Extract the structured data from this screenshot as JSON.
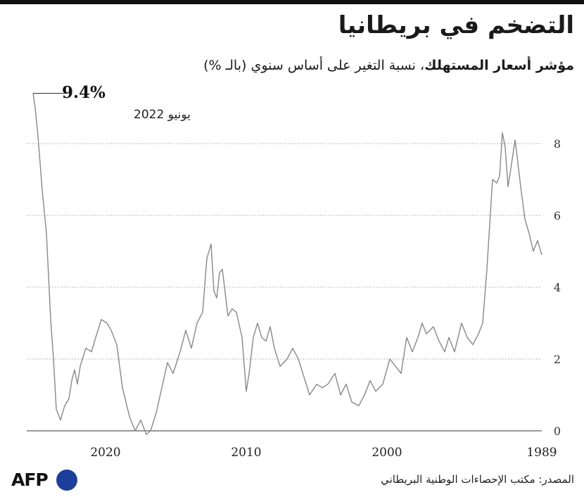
{
  "title": "التضخم في بريطانيا",
  "subtitle": {
    "bold": "مؤشر أسعار المستهلك",
    "rest": "، نسبة التغير على أساس سنوي (بالـ %)"
  },
  "annotation": {
    "value": "9.4%",
    "date": "يونيو 2022"
  },
  "source": "المصدر: مكتب الإحصاءات الوطنية البريطاني",
  "logo": {
    "text": "AFP",
    "color": "#1c3f9c"
  },
  "chart_data": {
    "type": "line",
    "title": "التضخم في بريطانيا",
    "ylabel": "مؤشر أسعار المستهلك، نسبة التغير على أساس سنوي (بالـ %)",
    "x_reversed": true,
    "xlim": [
      1989.0,
      2022.5
    ],
    "ylim": [
      0,
      9.4
    ],
    "x_ticks": [
      1989,
      2000,
      2010,
      2020
    ],
    "y_ticks": [
      0,
      2,
      4,
      6,
      8
    ],
    "grid": true,
    "line_color": "#888888",
    "series": [
      {
        "points": [
          [
            1989.0,
            4.9
          ],
          [
            1989.3,
            5.3
          ],
          [
            1989.6,
            5.0
          ],
          [
            1989.9,
            5.5
          ],
          [
            1990.2,
            5.9
          ],
          [
            1990.5,
            6.8
          ],
          [
            1990.8,
            7.8
          ],
          [
            1990.9,
            8.1
          ],
          [
            1991.2,
            7.3
          ],
          [
            1991.4,
            6.8
          ],
          [
            1991.6,
            7.9
          ],
          [
            1991.8,
            8.3
          ],
          [
            1992.0,
            7.1
          ],
          [
            1992.2,
            6.9
          ],
          [
            1992.5,
            7.0
          ],
          [
            1992.9,
            4.5
          ],
          [
            1993.2,
            3.0
          ],
          [
            1993.5,
            2.7
          ],
          [
            1993.9,
            2.4
          ],
          [
            1994.3,
            2.6
          ],
          [
            1994.7,
            3.0
          ],
          [
            1995.2,
            2.2
          ],
          [
            1995.6,
            2.6
          ],
          [
            1995.9,
            2.2
          ],
          [
            1996.3,
            2.5
          ],
          [
            1996.7,
            2.9
          ],
          [
            1997.2,
            2.7
          ],
          [
            1997.5,
            3.0
          ],
          [
            1997.8,
            2.6
          ],
          [
            1998.2,
            2.2
          ],
          [
            1998.6,
            2.6
          ],
          [
            1999.0,
            1.6
          ],
          [
            1999.4,
            1.8
          ],
          [
            1999.8,
            2.0
          ],
          [
            2000.3,
            1.3
          ],
          [
            2000.8,
            1.1
          ],
          [
            2001.2,
            1.4
          ],
          [
            2001.6,
            1.0
          ],
          [
            2002.0,
            0.7
          ],
          [
            2002.5,
            0.8
          ],
          [
            2002.9,
            1.3
          ],
          [
            2003.3,
            1.0
          ],
          [
            2003.7,
            1.6
          ],
          [
            2004.2,
            1.3
          ],
          [
            2004.6,
            1.2
          ],
          [
            2005.0,
            1.3
          ],
          [
            2005.5,
            1.0
          ],
          [
            2005.9,
            1.5
          ],
          [
            2006.3,
            2.0
          ],
          [
            2006.7,
            2.3
          ],
          [
            2007.1,
            2.0
          ],
          [
            2007.6,
            1.8
          ],
          [
            2008.0,
            2.3
          ],
          [
            2008.3,
            2.9
          ],
          [
            2008.6,
            2.5
          ],
          [
            2008.9,
            2.6
          ],
          [
            2009.2,
            3.0
          ],
          [
            2009.5,
            2.6
          ],
          [
            2009.8,
            1.6
          ],
          [
            2010.0,
            1.1
          ],
          [
            2010.3,
            2.6
          ],
          [
            2010.7,
            3.3
          ],
          [
            2011.0,
            3.4
          ],
          [
            2011.3,
            3.2
          ],
          [
            2011.7,
            4.5
          ],
          [
            2011.9,
            4.4
          ],
          [
            2012.1,
            3.7
          ],
          [
            2012.3,
            3.9
          ],
          [
            2012.5,
            5.2
          ],
          [
            2012.8,
            4.8
          ],
          [
            2013.1,
            3.3
          ],
          [
            2013.5,
            3.0
          ],
          [
            2013.9,
            2.3
          ],
          [
            2014.3,
            2.8
          ],
          [
            2014.7,
            2.2
          ],
          [
            2015.2,
            1.6
          ],
          [
            2015.6,
            1.9
          ],
          [
            2016.0,
            1.2
          ],
          [
            2016.4,
            0.5
          ],
          [
            2016.8,
            0.0
          ],
          [
            2017.1,
            -0.1
          ],
          [
            2017.5,
            0.3
          ],
          [
            2017.9,
            0.0
          ],
          [
            2018.3,
            0.4
          ],
          [
            2018.8,
            1.2
          ],
          [
            2019.2,
            2.4
          ],
          [
            2019.6,
            2.8
          ],
          [
            2019.9,
            3.0
          ],
          [
            2020.3,
            3.1
          ],
          [
            2020.7,
            2.6
          ],
          [
            2021.0,
            2.2
          ],
          [
            2021.4,
            2.3
          ],
          [
            2021.8,
            1.8
          ],
          [
            2022.0,
            1.3
          ],
          [
            2022.2,
            1.7
          ],
          [
            2022.4,
            1.4
          ],
          [
            2022.6,
            0.9
          ],
          [
            2022.9,
            0.7
          ],
          [
            2023.2,
            0.3
          ],
          [
            2023.5,
            0.6
          ],
          [
            2023.7,
            2.0
          ],
          [
            2023.9,
            3.1
          ],
          [
            2024.2,
            5.5
          ],
          [
            2024.5,
            6.7
          ],
          [
            2024.8,
            8.2
          ],
          [
            2025.0,
            9.0
          ],
          [
            2025.15,
            9.4
          ]
        ]
      }
    ]
  }
}
